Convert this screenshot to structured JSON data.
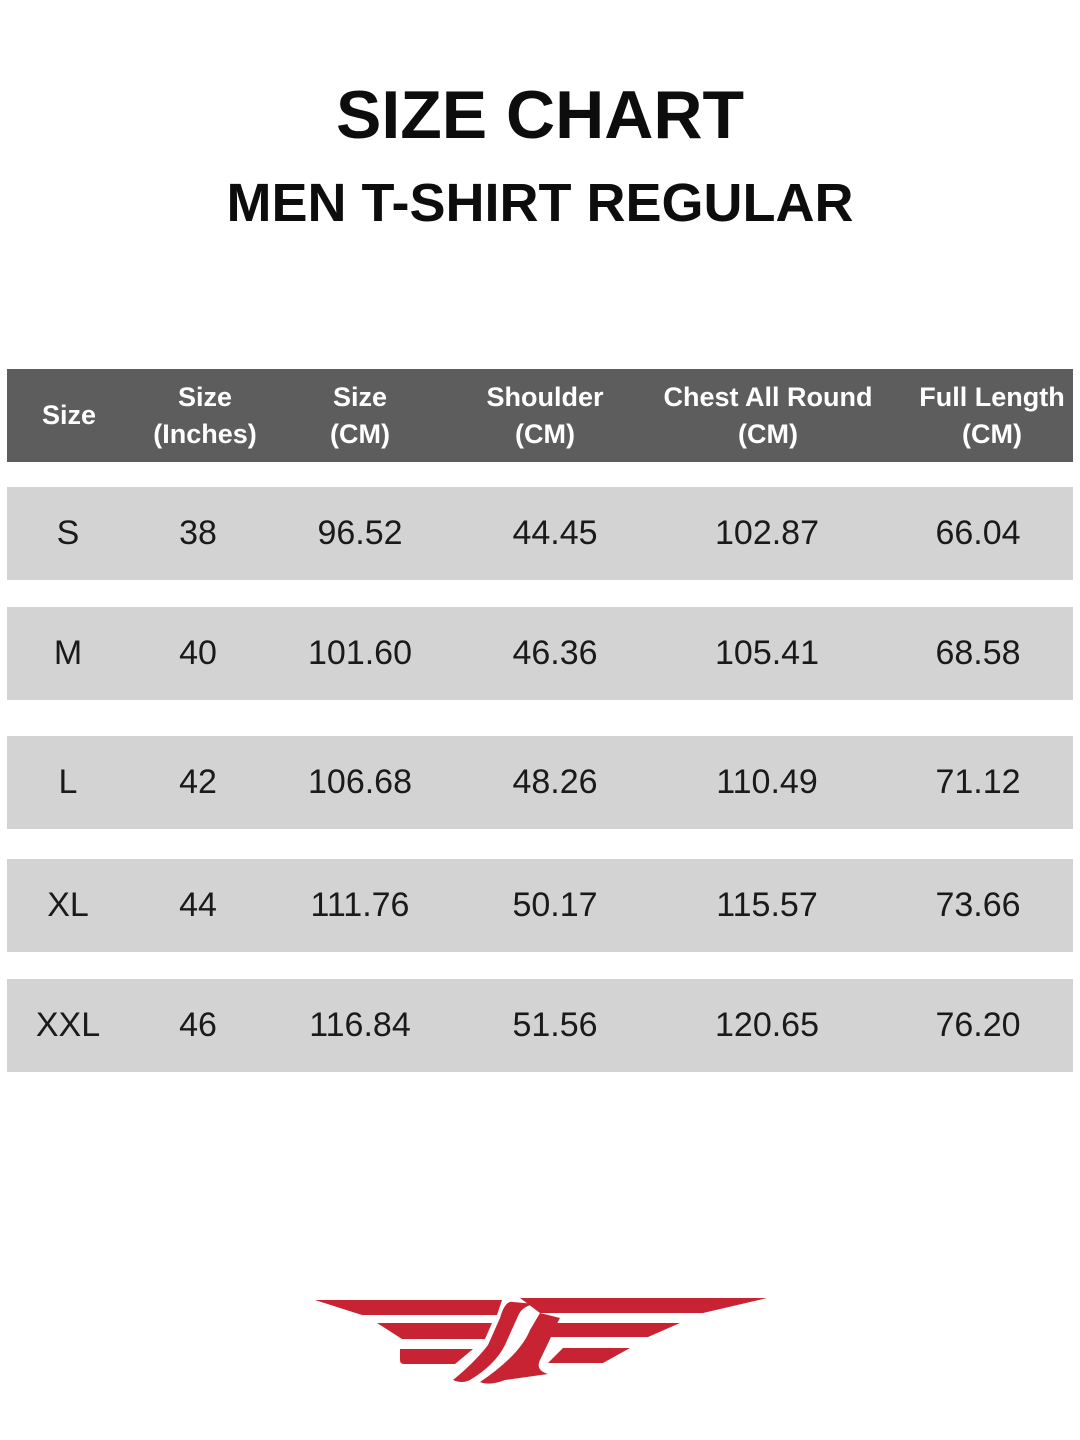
{
  "title": "SIZE CHART",
  "subtitle": "MEN T-SHIRT REGULAR",
  "colors": {
    "header_bg": "#5e5d5e",
    "row_bg": "#d3d3d3",
    "logo": "#c82333"
  },
  "columns": [
    "Size",
    "Size (Inches)",
    "Size (CM)",
    "Shoulder (CM)",
    "Chest All Round (CM)",
    "Full Length (CM)"
  ],
  "header_lines": [
    [
      "Size"
    ],
    [
      "Size",
      "(Inches)"
    ],
    [
      "Size",
      "(CM)"
    ],
    [
      "Shoulder",
      "(CM)"
    ],
    [
      "Chest All Round",
      "(CM)"
    ],
    [
      "Full Length",
      "(CM)"
    ]
  ],
  "rows": [
    [
      "S",
      "38",
      "96.52",
      "44.45",
      "102.87",
      "66.04"
    ],
    [
      "M",
      "40",
      "101.60",
      "46.36",
      "105.41",
      "68.58"
    ],
    [
      "L",
      "42",
      "106.68",
      "48.26",
      "110.49",
      "71.12"
    ],
    [
      "XL",
      "44",
      "111.76",
      "50.17",
      "115.57",
      "73.66"
    ],
    [
      "XXL",
      "46",
      "116.84",
      "51.56",
      "120.65",
      "76.20"
    ]
  ],
  "logo": {
    "icon": "winged-logo"
  }
}
